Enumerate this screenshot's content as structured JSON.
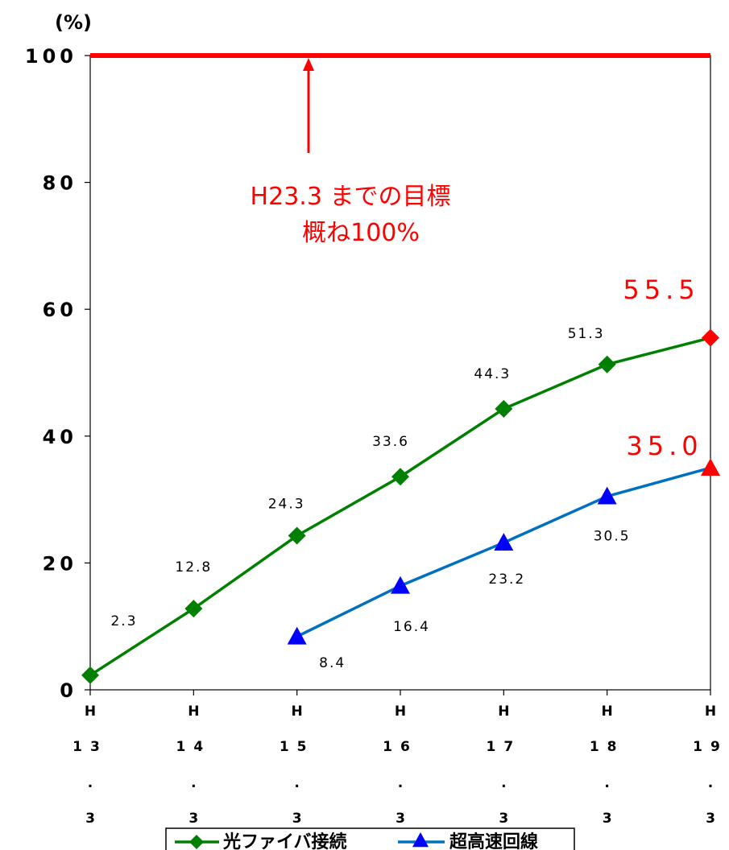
{
  "chart_data": {
    "type": "line",
    "unit_label": "(%)",
    "categories": [
      "H13.3",
      "H14.3",
      "H15.3",
      "H16.3",
      "H17.3",
      "H18.3",
      "H19.3"
    ],
    "category_parts": [
      [
        "H",
        "13",
        ".",
        "3"
      ],
      [
        "H",
        "14",
        ".",
        "3"
      ],
      [
        "H",
        "15",
        ".",
        "3"
      ],
      [
        "H",
        "16",
        ".",
        "3"
      ],
      [
        "H",
        "17",
        ".",
        "3"
      ],
      [
        "H",
        "18",
        ".",
        "3"
      ],
      [
        "H",
        "19",
        ".",
        "3"
      ]
    ],
    "ylim": [
      0,
      100
    ],
    "yticks": [
      0,
      20,
      40,
      60,
      80,
      100
    ],
    "series": [
      {
        "name": "光ファイバ接続",
        "color": "#008000",
        "marker": "diamond",
        "values": [
          2.3,
          12.8,
          24.3,
          33.6,
          44.3,
          51.3,
          55.5
        ],
        "labels": [
          "2.3",
          "12.8",
          "24.3",
          "33.6",
          "44.3",
          "51.3",
          "55.5"
        ]
      },
      {
        "name": "超高速回線",
        "color": "#0070c0",
        "marker_color": "#0000ff",
        "marker": "triangle",
        "values": [
          null,
          null,
          8.4,
          16.4,
          23.2,
          30.5,
          35.0
        ],
        "labels": [
          null,
          null,
          "8.4",
          "16.4",
          "23.2",
          "30.5",
          "35.0"
        ]
      }
    ],
    "target_line": {
      "value": 100,
      "color": "#ff0000"
    },
    "annotation": {
      "lines": [
        "H23.3 までの目標",
        "概ね100%"
      ],
      "color": "#ff0000"
    },
    "highlight_color": "#ff0000",
    "legend": {
      "position": "bottom"
    }
  }
}
